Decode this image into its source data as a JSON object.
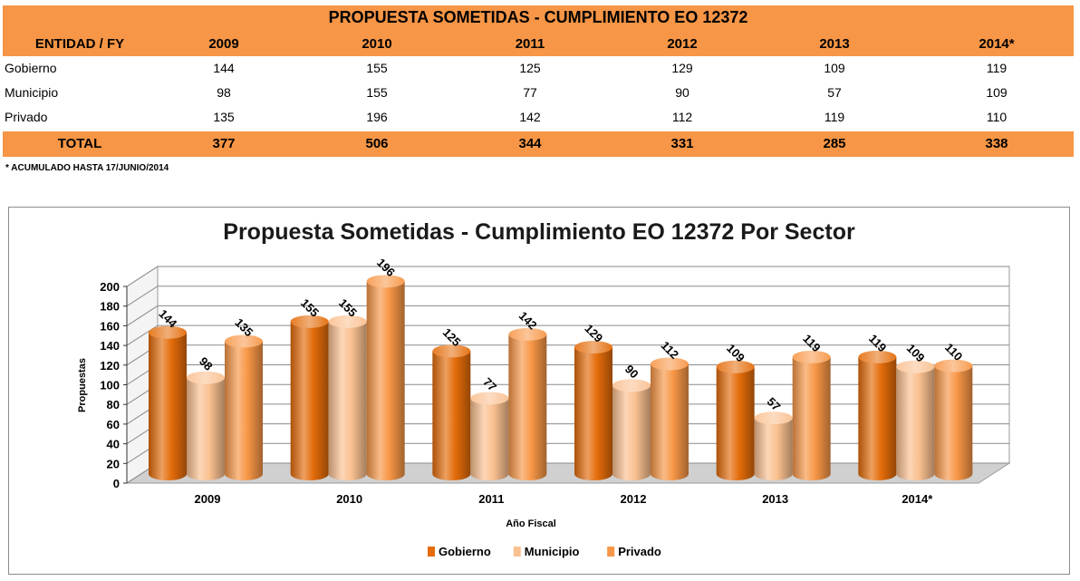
{
  "table": {
    "title": "PROPUESTA SOMETIDAS - CUMPLIMIENTO EO 12372",
    "header": [
      "ENTIDAD / FY",
      "2009",
      "2010",
      "2011",
      "2012",
      "2013",
      "2014*"
    ],
    "rows": [
      {
        "label": "Gobierno",
        "values": [
          "144",
          "155",
          "125",
          "129",
          "109",
          "119"
        ]
      },
      {
        "label": "Municipio",
        "values": [
          "98",
          "155",
          "77",
          "90",
          "57",
          "109"
        ]
      },
      {
        "label": "Privado",
        "values": [
          "135",
          "196",
          "142",
          "112",
          "119",
          "110"
        ]
      }
    ],
    "total": {
      "label": "TOTAL",
      "values": [
        "377",
        "506",
        "344",
        "331",
        "285",
        "338"
      ]
    },
    "footnote": "* ACUMULADO HASTA 17/JUNIO/2014",
    "band_color": "#f79646"
  },
  "chart_data": {
    "type": "bar",
    "title": "Propuesta Sometidas - Cumplimiento EO 12372 Por Sector",
    "xlabel": "Año Fiscal",
    "ylabel": "Propuestas",
    "categories": [
      "2009",
      "2010",
      "2011",
      "2012",
      "2013",
      "2014*"
    ],
    "series": [
      {
        "name": "Gobierno",
        "values": [
          144,
          155,
          125,
          129,
          109,
          119
        ],
        "color": "#e46c0a"
      },
      {
        "name": "Municipio",
        "values": [
          98,
          155,
          77,
          90,
          57,
          109
        ],
        "color": "#fac090"
      },
      {
        "name": "Privado",
        "values": [
          135,
          196,
          142,
          112,
          119,
          110
        ],
        "color": "#f79646"
      }
    ],
    "ylim": [
      0,
      200
    ],
    "yticks": [
      0,
      20,
      40,
      60,
      80,
      100,
      120,
      140,
      160,
      180,
      200
    ],
    "grid": true,
    "legend": "bottom",
    "style": "3d-cylinder"
  }
}
